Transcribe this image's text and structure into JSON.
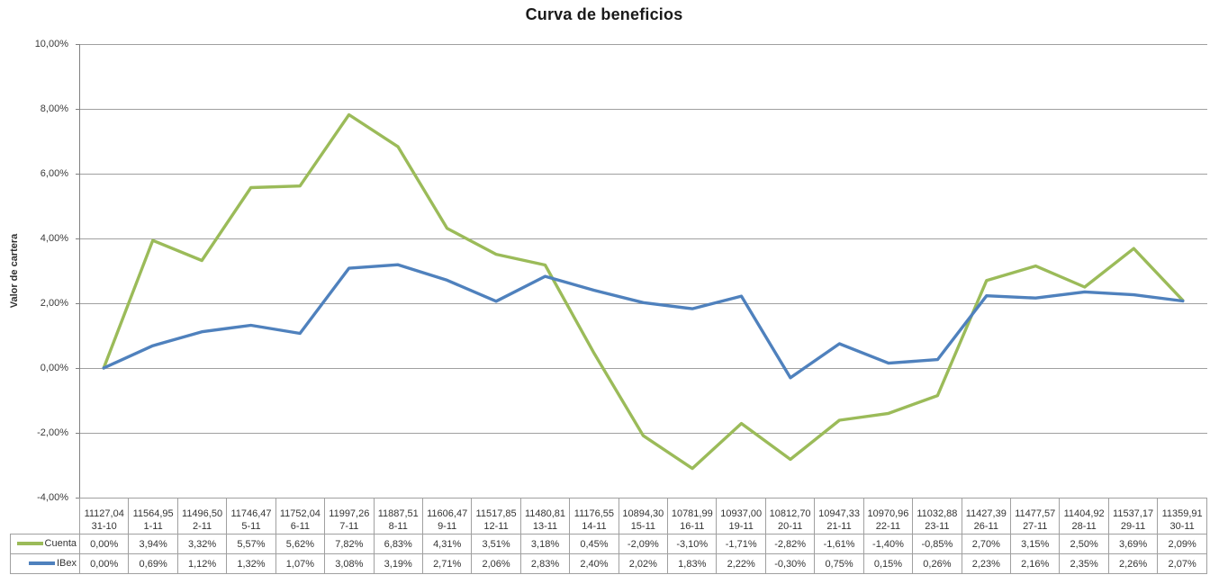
{
  "title": "Curva de beneficios",
  "y_axis_title": "Valor de cartera",
  "colors": {
    "cuenta": "#9bbb59",
    "ibex": "#4f81bd",
    "gridline": "#a0a0a0",
    "axis": "#808080",
    "table_border": "#a0a0a0",
    "text": "#333333"
  },
  "chart_data": {
    "type": "line",
    "title": "Curva de beneficios",
    "xlabel": "",
    "ylabel": "Valor de cartera",
    "ylim": [
      -4,
      10
    ],
    "grid": true,
    "legend_position": "data-table-left",
    "yticks": [
      10,
      8,
      6,
      4,
      2,
      0,
      -2,
      -4
    ],
    "ytick_labels": [
      "10,00%",
      "8,00%",
      "6,00%",
      "4,00%",
      "2,00%",
      "0,00%",
      "-2,00%",
      "-4,00%"
    ],
    "categories": [
      "31-10",
      "1-11",
      "2-11",
      "5-11",
      "6-11",
      "7-11",
      "8-11",
      "9-11",
      "12-11",
      "13-11",
      "14-11",
      "15-11",
      "16-11",
      "19-11",
      "20-11",
      "21-11",
      "22-11",
      "23-11",
      "26-11",
      "27-11",
      "28-11",
      "29-11",
      "30-11"
    ],
    "index_values": [
      "11127,04",
      "11564,95",
      "11496,50",
      "11746,47",
      "11752,04",
      "11997,26",
      "11887,51",
      "11606,47",
      "11517,85",
      "11480,81",
      "11176,55",
      "10894,30",
      "10781,99",
      "10937,00",
      "10812,70",
      "10947,33",
      "10970,96",
      "11032,88",
      "11427,39",
      "11477,57",
      "11404,92",
      "11537,17",
      "11359,91"
    ],
    "series": [
      {
        "name": "Cuenta",
        "color": "#9bbb59",
        "values": [
          0.0,
          3.94,
          3.32,
          5.57,
          5.62,
          7.82,
          6.83,
          4.31,
          3.51,
          3.18,
          0.45,
          -2.09,
          -3.1,
          -1.71,
          -2.82,
          -1.61,
          -1.4,
          -0.85,
          2.7,
          3.15,
          2.5,
          3.69,
          2.09
        ],
        "labels": [
          "0,00%",
          "3,94%",
          "3,32%",
          "5,57%",
          "5,62%",
          "7,82%",
          "6,83%",
          "4,31%",
          "3,51%",
          "3,18%",
          "0,45%",
          "-2,09%",
          "-3,10%",
          "-1,71%",
          "-2,82%",
          "-1,61%",
          "-1,40%",
          "-0,85%",
          "2,70%",
          "3,15%",
          "2,50%",
          "3,69%",
          "2,09%"
        ]
      },
      {
        "name": "IBex",
        "color": "#4f81bd",
        "values": [
          0.0,
          0.69,
          1.12,
          1.32,
          1.07,
          3.08,
          3.19,
          2.71,
          2.06,
          2.83,
          2.4,
          2.02,
          1.83,
          2.22,
          -0.3,
          0.75,
          0.15,
          0.26,
          2.23,
          2.16,
          2.35,
          2.26,
          2.07
        ],
        "labels": [
          "0,00%",
          "0,69%",
          "1,12%",
          "1,32%",
          "1,07%",
          "3,08%",
          "3,19%",
          "2,71%",
          "2,06%",
          "2,83%",
          "2,40%",
          "2,02%",
          "1,83%",
          "2,22%",
          "-0,30%",
          "0,75%",
          "0,15%",
          "0,26%",
          "2,23%",
          "2,16%",
          "2,35%",
          "2,26%",
          "2,07%"
        ]
      }
    ]
  }
}
